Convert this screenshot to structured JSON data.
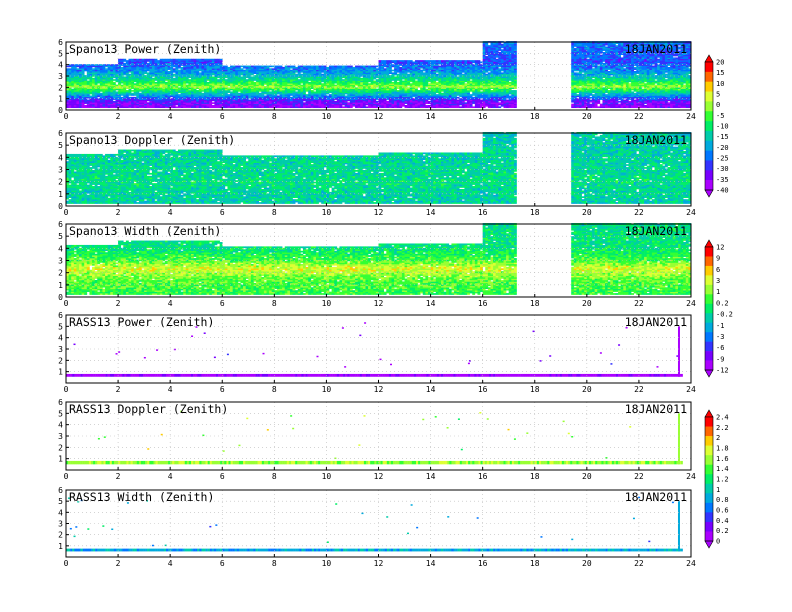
{
  "chart_data": [
    {
      "type": "heatmap",
      "title": "Spano13 Power (Zenith)",
      "date_label": "18JAN2011",
      "x_ticks": [
        "0",
        "2",
        "4",
        "6",
        "8",
        "10",
        "12",
        "14",
        "16",
        "18",
        "20",
        "22",
        "24"
      ],
      "y_ticks": [
        "0",
        "1",
        "2",
        "3",
        "4",
        "5",
        "6"
      ],
      "xlim": [
        0,
        24
      ],
      "ylim": [
        0,
        6
      ],
      "grid": true,
      "colorbar": {
        "labels": [
          "20",
          "15",
          "10",
          "5",
          "0",
          "-5",
          "-10",
          "-15",
          "-20",
          "-25",
          "-30",
          "-35",
          "-40"
        ]
      },
      "fields": {
        "coverage": [
          {
            "t0": 0.0,
            "t1": 2.0,
            "top": 4.0
          },
          {
            "t0": 2.0,
            "t1": 6.0,
            "top": 4.5
          },
          {
            "t0": 6.0,
            "t1": 12.0,
            "top": 3.9
          },
          {
            "t0": 12.0,
            "t1": 16.0,
            "top": 4.3
          },
          {
            "t0": 16.0,
            "t1": 17.3,
            "top": 6.0
          },
          {
            "t0": 19.4,
            "t1": 24.0,
            "top": 6.0
          }
        ],
        "profile": [
          {
            "h": 0.0,
            "v": -38
          },
          {
            "h": 0.7,
            "v": -35
          },
          {
            "h": 1.3,
            "v": -20
          },
          {
            "h": 2.0,
            "v": 0
          },
          {
            "h": 2.6,
            "v": -12
          },
          {
            "h": 3.3,
            "v": -22
          },
          {
            "h": 4.2,
            "v": -28
          },
          {
            "h": 6.0,
            "v": -25
          }
        ]
      }
    },
    {
      "type": "heatmap",
      "title": "Spano13 Doppler (Zenith)",
      "date_label": "18JAN2011",
      "x_ticks": [
        "0",
        "2",
        "4",
        "6",
        "8",
        "10",
        "12",
        "14",
        "16",
        "18",
        "20",
        "22",
        "24"
      ],
      "y_ticks": [
        "0",
        "1",
        "2",
        "3",
        "4",
        "5",
        "6"
      ],
      "xlim": [
        0,
        24
      ],
      "ylim": [
        0,
        6
      ],
      "grid": true,
      "fields": {
        "coverage": [
          {
            "t0": 0.0,
            "t1": 2.0,
            "top": 4.2
          },
          {
            "t0": 2.0,
            "t1": 6.0,
            "top": 4.6
          },
          {
            "t0": 6.0,
            "t1": 12.0,
            "top": 4.1
          },
          {
            "t0": 12.0,
            "t1": 16.0,
            "top": 4.3
          },
          {
            "t0": 16.0,
            "t1": 17.3,
            "top": 6.0
          },
          {
            "t0": 19.4,
            "t1": 24.0,
            "top": 6.0
          }
        ],
        "profile": [
          {
            "h": 0.0,
            "v": -15
          },
          {
            "h": 2.0,
            "v": -12
          },
          {
            "h": 4.0,
            "v": -14
          },
          {
            "h": 6.0,
            "v": -16
          }
        ]
      }
    },
    {
      "type": "heatmap",
      "title": "Spano13 Width (Zenith)",
      "date_label": "18JAN2011",
      "x_ticks": [
        "0",
        "2",
        "4",
        "6",
        "8",
        "10",
        "12",
        "14",
        "16",
        "18",
        "20",
        "22",
        "24"
      ],
      "y_ticks": [
        "0",
        "1",
        "2",
        "3",
        "4",
        "5",
        "6"
      ],
      "xlim": [
        0,
        24
      ],
      "ylim": [
        0,
        6
      ],
      "grid": true,
      "colorbar": {
        "labels": [
          "12",
          "9",
          "6",
          "3",
          "1",
          "0.2",
          "-0.2",
          "-1",
          "-3",
          "-6",
          "-9",
          "-12"
        ]
      },
      "fields": {
        "coverage": [
          {
            "t0": 0.0,
            "t1": 2.0,
            "top": 4.2
          },
          {
            "t0": 2.0,
            "t1": 6.0,
            "top": 4.6
          },
          {
            "t0": 6.0,
            "t1": 12.0,
            "top": 4.1
          },
          {
            "t0": 12.0,
            "t1": 16.0,
            "top": 4.3
          },
          {
            "t0": 16.0,
            "t1": 17.3,
            "top": 6.0
          },
          {
            "t0": 19.4,
            "t1": 24.0,
            "top": 6.0
          }
        ],
        "profile": [
          {
            "h": 0.0,
            "v": 1
          },
          {
            "h": 1.5,
            "v": 3
          },
          {
            "h": 2.3,
            "v": 6
          },
          {
            "h": 3.0,
            "v": 2
          },
          {
            "h": 4.0,
            "v": -0.5
          },
          {
            "h": 6.0,
            "v": -1
          }
        ]
      }
    },
    {
      "type": "heatmap",
      "title": "RASS13 Power (Zenith)",
      "date_label": "18JAN2011",
      "x_ticks": [
        "0",
        "2",
        "4",
        "6",
        "8",
        "10",
        "12",
        "14",
        "16",
        "18",
        "20",
        "22",
        "24"
      ],
      "y_ticks": [
        "1",
        "2",
        "3",
        "4",
        "5",
        "6"
      ],
      "xlim": [
        0,
        24
      ],
      "ylim": [
        0,
        6
      ],
      "grid": true,
      "fields": {
        "band": {
          "h0": 0.55,
          "h1": 0.8,
          "v": -12
        },
        "spike": {
          "t": 23.5,
          "h1": 5.0
        }
      }
    },
    {
      "type": "heatmap",
      "title": "RASS13 Doppler (Zenith)",
      "date_label": "18JAN2011",
      "x_ticks": [
        "0",
        "2",
        "4",
        "6",
        "8",
        "10",
        "12",
        "14",
        "16",
        "18",
        "20",
        "22",
        "24"
      ],
      "y_ticks": [
        "1",
        "2",
        "3",
        "4",
        "5",
        "6"
      ],
      "xlim": [
        0,
        24
      ],
      "ylim": [
        0,
        6
      ],
      "grid": true,
      "colorbar": {
        "labels": [
          "2.4",
          "2.2",
          "2",
          "1.8",
          "1.6",
          "1.4",
          "1.2",
          "1",
          "0.8",
          "0.6",
          "0.4",
          "0.2",
          "0"
        ]
      },
      "fields": {
        "band": {
          "h0": 0.5,
          "h1": 0.8,
          "v": 1.6
        },
        "spike": {
          "t": 23.5,
          "h1": 5.0
        }
      }
    },
    {
      "type": "heatmap",
      "title": "RASS13 Width (Zenith)",
      "date_label": "18JAN2011",
      "x_ticks": [
        "0",
        "2",
        "4",
        "6",
        "8",
        "10",
        "12",
        "14",
        "16",
        "18",
        "20",
        "22",
        "24"
      ],
      "y_ticks": [
        "1",
        "2",
        "3",
        "4",
        "5",
        "6"
      ],
      "xlim": [
        0,
        24
      ],
      "ylim": [
        0,
        6
      ],
      "grid": true,
      "fields": {
        "band": {
          "h0": 0.5,
          "h1": 0.75,
          "v": 0.8
        },
        "spike": {
          "t": 23.5,
          "h1": 5.0
        }
      }
    }
  ],
  "colors": {
    "scale": [
      "#ff0000",
      "#ff6600",
      "#ffcc00",
      "#ddff33",
      "#99ff33",
      "#33ff33",
      "#00ee66",
      "#00ccaa",
      "#00aadd",
      "#0077ff",
      "#3333ff",
      "#7700ff",
      "#aa00ff"
    ]
  }
}
